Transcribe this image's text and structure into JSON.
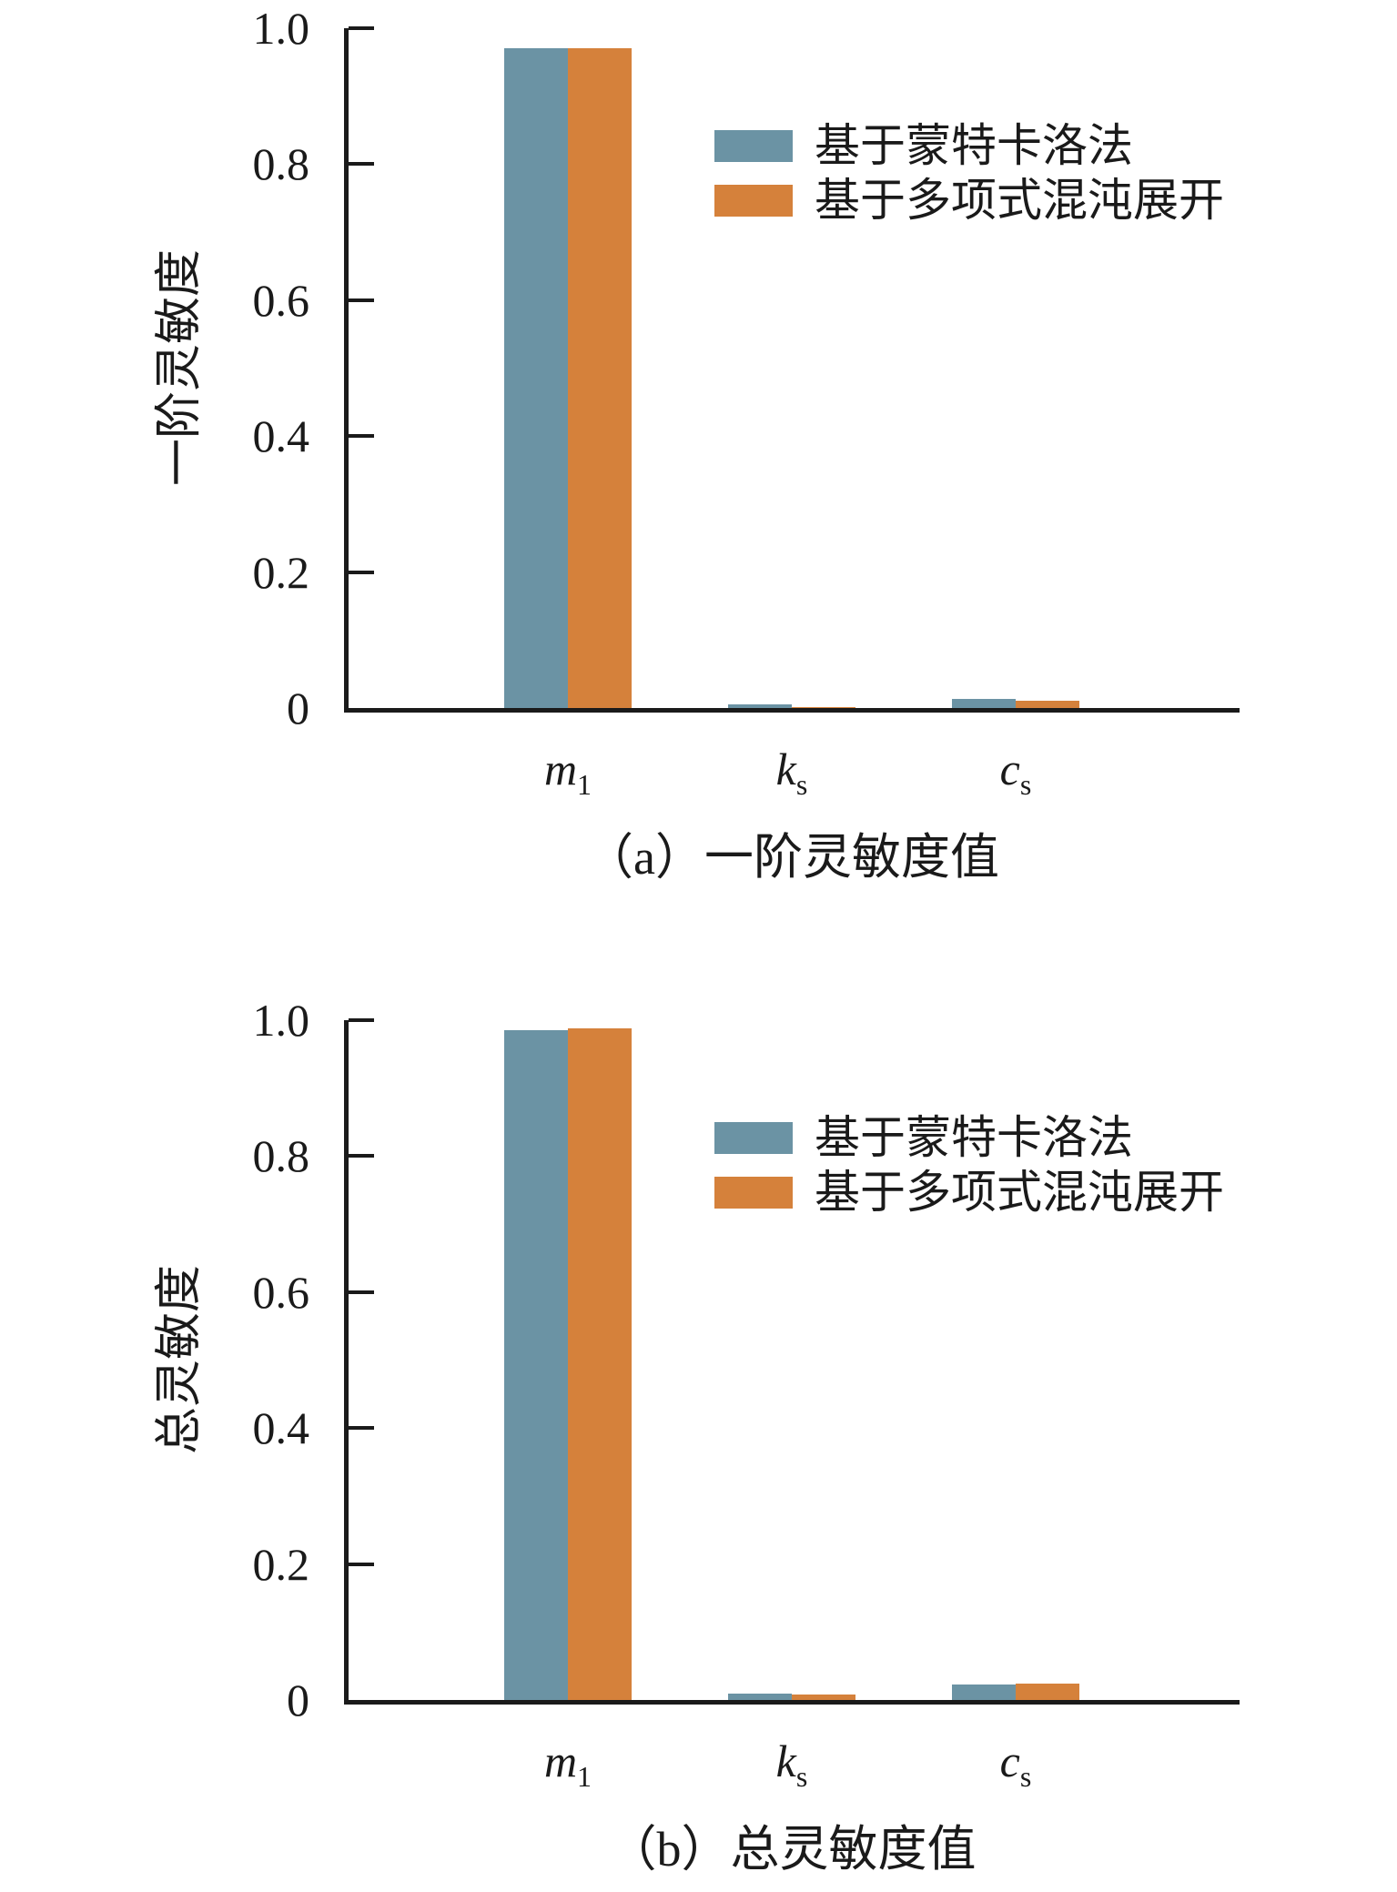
{
  "figure": {
    "background": "#ffffff",
    "axis_color": "#1a1a1a",
    "series_colors": {
      "monte_carlo": "#6B93A4",
      "pce": "#D5813B"
    }
  },
  "chart_data": [
    {
      "type": "bar",
      "caption": "（a）一阶灵敏度值",
      "ylabel": "一阶灵敏度",
      "xlabel": "",
      "ylim": [
        0,
        1.0
      ],
      "grid": false,
      "legend_position": "upper-right-inside",
      "yticks": [
        0,
        0.2,
        0.4,
        0.6,
        0.8,
        1.0
      ],
      "ytick_labels": [
        "0",
        "0.2",
        "0.4",
        "0.6",
        "0.8",
        "1.0"
      ],
      "categories": [
        {
          "base": "m",
          "sub": "1"
        },
        {
          "base": "k",
          "sub": "s"
        },
        {
          "base": "c",
          "sub": "s"
        }
      ],
      "legend": [
        {
          "label": "基于蒙特卡洛法",
          "color": "#6B93A4"
        },
        {
          "label": "基于多项式混沌展开",
          "color": "#D5813B"
        }
      ],
      "series": [
        {
          "name": "基于蒙特卡洛法",
          "values": [
            0.97,
            0.005,
            0.013
          ]
        },
        {
          "name": "基于多项式混沌展开",
          "values": [
            0.97,
            0.001,
            0.011
          ]
        }
      ]
    },
    {
      "type": "bar",
      "caption": "（b）总灵敏度值",
      "ylabel": "总灵敏度",
      "xlabel": "",
      "ylim": [
        0,
        1.0
      ],
      "grid": false,
      "legend_position": "upper-right-inside",
      "yticks": [
        0,
        0.2,
        0.4,
        0.6,
        0.8,
        1.0
      ],
      "ytick_labels": [
        "0",
        "0.2",
        "0.4",
        "0.6",
        "0.8",
        "1.0"
      ],
      "categories": [
        {
          "base": "m",
          "sub": "1"
        },
        {
          "base": "k",
          "sub": "s"
        },
        {
          "base": "c",
          "sub": "s"
        }
      ],
      "legend": [
        {
          "label": "基于蒙特卡洛法",
          "color": "#6B93A4"
        },
        {
          "label": "基于多项式混沌展开",
          "color": "#D5813B"
        }
      ],
      "series": [
        {
          "name": "基于蒙特卡洛法",
          "values": [
            0.985,
            0.009,
            0.023
          ]
        },
        {
          "name": "基于多项式混沌展开",
          "values": [
            0.988,
            0.008,
            0.024
          ]
        }
      ]
    }
  ]
}
